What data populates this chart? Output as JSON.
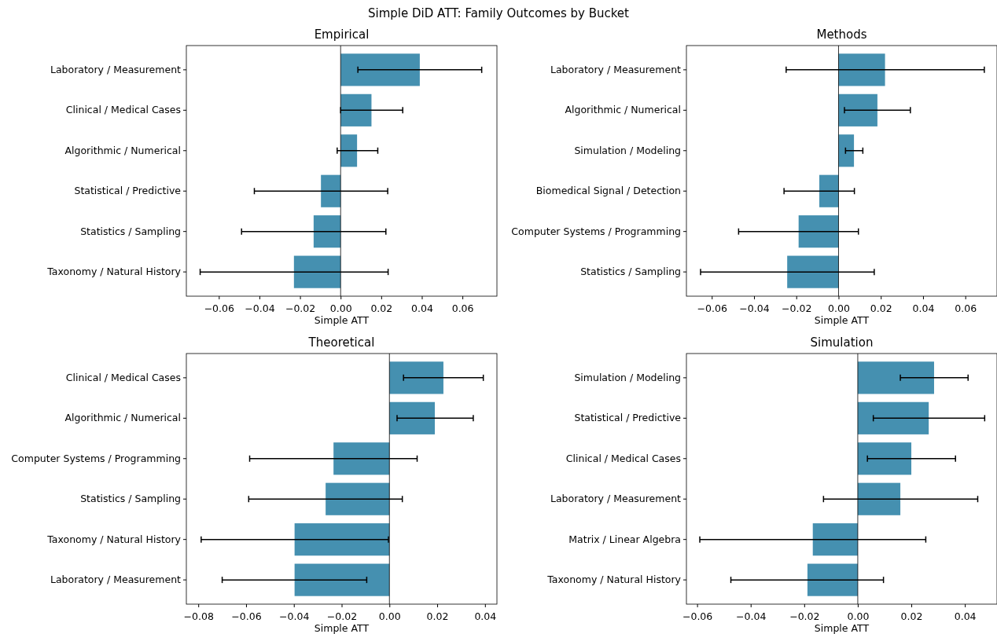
{
  "chart_data": [
    {
      "type": "bar",
      "orientation": "horizontal",
      "title": "Empirical",
      "xlabel": "Simple ATT",
      "annotations": [
        "Simple DiD ATT: Family Outcomes by Bucket"
      ],
      "categories": [
        "Laboratory / Measurement",
        "Clinical / Medical Cases",
        "Algorithmic / Numerical",
        "Statistical / Predictive",
        "Statistics / Sampling",
        "Taxonomy / Natural History"
      ],
      "values": [
        0.039,
        0.0152,
        0.0081,
        -0.0097,
        -0.0133,
        -0.023
      ],
      "errors": [
        [
          0.0085,
          0.0695
        ],
        [
          0.0,
          0.0306
        ],
        [
          -0.0017,
          0.0183
        ],
        [
          -0.0425,
          0.0232
        ],
        [
          -0.0488,
          0.0223
        ],
        [
          -0.0692,
          0.0234
        ]
      ],
      "color": "#4590b0",
      "xlim": [
        -0.076,
        0.077
      ],
      "xticks": [
        {
          "value": -0.06,
          "label": "−0.06"
        },
        {
          "value": -0.04,
          "label": "−0.04"
        },
        {
          "value": -0.02,
          "label": "−0.02"
        },
        {
          "value": 0,
          "label": "0.00"
        },
        {
          "value": 0.02,
          "label": "0.02"
        },
        {
          "value": 0.04,
          "label": "0.04"
        },
        {
          "value": 0.06,
          "label": "0.06"
        }
      ],
      "ref_lines": [
        {
          "axis": "x",
          "value": 0,
          "color": "#000000"
        }
      ]
    },
    {
      "type": "bar",
      "orientation": "horizontal",
      "title": "Methods",
      "xlabel": "Simple ATT",
      "categories": [
        "Laboratory / Measurement",
        "Algorithmic / Numerical",
        "Simulation / Modeling",
        "Biomedical Signal / Detection",
        "Computer Systems / Programming",
        "Statistics / Sampling"
      ],
      "values": [
        0.022,
        0.0184,
        0.0073,
        -0.0091,
        -0.0189,
        -0.0243
      ],
      "errors": [
        [
          -0.0248,
          0.069
        ],
        [
          0.0028,
          0.034
        ],
        [
          0.0033,
          0.0115
        ],
        [
          -0.0258,
          0.0075
        ],
        [
          -0.0473,
          0.0094
        ],
        [
          -0.0653,
          0.0169
        ]
      ],
      "color": "#4590b0",
      "xlim": [
        -0.072,
        0.075
      ],
      "xticks": [
        {
          "value": -0.06,
          "label": "−0.06"
        },
        {
          "value": -0.04,
          "label": "−0.04"
        },
        {
          "value": -0.02,
          "label": "−0.02"
        },
        {
          "value": 0,
          "label": "0.00"
        },
        {
          "value": 0.02,
          "label": "0.02"
        },
        {
          "value": 0.04,
          "label": "0.04"
        },
        {
          "value": 0.06,
          "label": "0.06"
        }
      ],
      "ref_lines": [
        {
          "axis": "x",
          "value": 0,
          "color": "#000000"
        }
      ]
    },
    {
      "type": "bar",
      "orientation": "horizontal",
      "title": "Theoretical",
      "xlabel": "Simple ATT",
      "categories": [
        "Clinical / Medical Cases",
        "Algorithmic / Numerical",
        "Computer Systems / Programming",
        "Statistics / Sampling",
        "Taxonomy / Natural History",
        "Laboratory / Measurement"
      ],
      "values": [
        0.0226,
        0.019,
        -0.0234,
        -0.0267,
        -0.0397,
        -0.0397
      ],
      "errors": [
        [
          0.0059,
          0.0393
        ],
        [
          0.0032,
          0.0351
        ],
        [
          -0.0585,
          0.0116
        ],
        [
          -0.0589,
          0.0054
        ],
        [
          -0.0788,
          -0.0004
        ],
        [
          -0.07,
          -0.0095
        ]
      ],
      "color": "#4590b0",
      "xlim": [
        -0.085,
        0.045
      ],
      "xticks": [
        {
          "value": -0.08,
          "label": "−0.08"
        },
        {
          "value": -0.06,
          "label": "−0.06"
        },
        {
          "value": -0.04,
          "label": "−0.04"
        },
        {
          "value": -0.02,
          "label": "−0.02"
        },
        {
          "value": 0,
          "label": "0.00"
        },
        {
          "value": 0.02,
          "label": "0.02"
        },
        {
          "value": 0.04,
          "label": "0.04"
        }
      ],
      "ref_lines": [
        {
          "axis": "x",
          "value": 0,
          "color": "#000000"
        }
      ]
    },
    {
      "type": "bar",
      "orientation": "horizontal",
      "title": "Simulation",
      "xlabel": "Simple ATT",
      "categories": [
        "Simulation / Modeling",
        "Statistical / Predictive",
        "Clinical / Medical Cases",
        "Laboratory / Measurement",
        "Matrix / Linear Algebra",
        "Taxonomy / Natural History"
      ],
      "values": [
        0.0285,
        0.0265,
        0.02,
        0.0159,
        -0.0168,
        -0.0188
      ],
      "errors": [
        [
          0.0159,
          0.0412
        ],
        [
          0.0058,
          0.0474
        ],
        [
          0.0036,
          0.0365
        ],
        [
          -0.0128,
          0.0448
        ],
        [
          -0.059,
          0.0254
        ],
        [
          -0.0474,
          0.0096
        ]
      ],
      "color": "#4590b0",
      "xlim": [
        -0.064,
        0.052
      ],
      "xticks": [
        {
          "value": -0.06,
          "label": "−0.06"
        },
        {
          "value": -0.04,
          "label": "−0.04"
        },
        {
          "value": -0.02,
          "label": "−0.02"
        },
        {
          "value": 0,
          "label": "0.00"
        },
        {
          "value": 0.02,
          "label": "0.02"
        },
        {
          "value": 0.04,
          "label": "0.04"
        }
      ],
      "ref_lines": [
        {
          "axis": "x",
          "value": 0,
          "color": "#000000"
        }
      ]
    }
  ]
}
